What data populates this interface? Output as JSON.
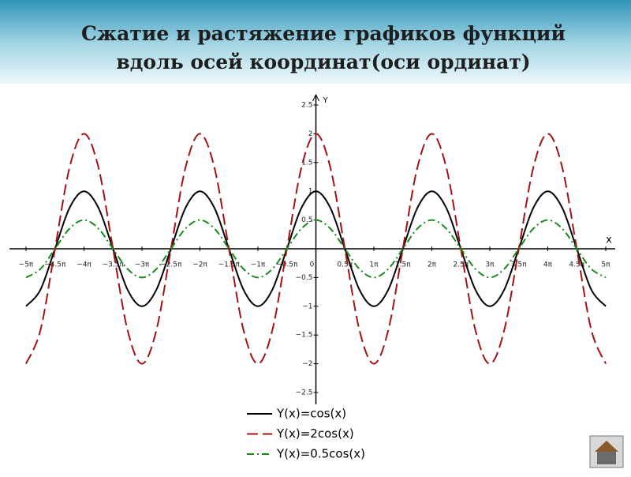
{
  "chart_data": {
    "type": "line",
    "title": "Сжатие и растяжение графиков функций вдоль осей координат(оси ординат)",
    "x_label": "x",
    "y_label": "Y",
    "x": [
      -5,
      -4.75,
      -4.5,
      -4.25,
      -4,
      -3.75,
      -3.5,
      -3.25,
      -3,
      -2.75,
      -2.5,
      -2.25,
      -2,
      -1.75,
      -1.5,
      -1.25,
      -1,
      -0.75,
      -0.5,
      -0.25,
      0,
      0.25,
      0.5,
      0.75,
      1,
      1.25,
      1.5,
      1.75,
      2,
      2.25,
      2.5,
      2.75,
      3,
      3.25,
      3.5,
      3.75,
      4,
      4.25,
      4.5,
      4.75,
      5
    ],
    "series": [
      {
        "name": "Y(x)=cos(x)",
        "color": "#000000",
        "dash": "solid",
        "values": [
          -1,
          -0.71,
          0,
          0.71,
          1,
          0.71,
          0,
          -0.71,
          -1,
          -0.71,
          0,
          0.71,
          1,
          0.71,
          0,
          -0.71,
          -1,
          -0.71,
          0,
          0.71,
          1,
          0.71,
          0,
          -0.71,
          -1,
          -0.71,
          0,
          0.71,
          1,
          0.71,
          0,
          -0.71,
          -1,
          -0.71,
          0,
          0.71,
          1,
          0.71,
          0,
          -0.71,
          -1
        ]
      },
      {
        "name": "Y(x)=2cos(x)",
        "color": "#a01414",
        "dash": "dashed",
        "values": [
          -2,
          -1.41,
          0,
          1.41,
          2,
          1.41,
          0,
          -1.41,
          -2,
          -1.41,
          0,
          1.41,
          2,
          1.41,
          0,
          -1.41,
          -2,
          -1.41,
          0,
          1.41,
          2,
          1.41,
          0,
          -1.41,
          -2,
          -1.41,
          0,
          1.41,
          2,
          1.41,
          0,
          -1.41,
          -2,
          -1.41,
          0,
          1.41,
          2,
          1.41,
          0,
          -1.41,
          -2
        ]
      },
      {
        "name": "Y(x)=0.5cos(x)",
        "color": "#1a8a1a",
        "dash": "dashdot",
        "values": [
          -0.5,
          -0.35,
          0,
          0.35,
          0.5,
          0.35,
          0,
          -0.35,
          -0.5,
          -0.35,
          0,
          0.35,
          0.5,
          0.35,
          0,
          -0.35,
          -0.5,
          -0.35,
          0,
          0.35,
          0.5,
          0.35,
          0,
          -0.35,
          -0.5,
          -0.35,
          0,
          0.35,
          0.5,
          0.35,
          0,
          -0.35,
          -0.5,
          -0.35,
          0,
          0.35,
          0.5,
          0.35,
          0,
          -0.35,
          -0.5
        ]
      }
    ],
    "xlim": [
      -5,
      5
    ],
    "ylim": [
      -2.5,
      2.5
    ],
    "xticks": [
      {
        "value": -5,
        "label": "−5π"
      },
      {
        "value": -4.5,
        "label": "−4.5π"
      },
      {
        "value": -4,
        "label": "−4π"
      },
      {
        "value": -3.5,
        "label": "−3.5π"
      },
      {
        "value": -3,
        "label": "−3π"
      },
      {
        "value": -2.5,
        "label": "−2.5π"
      },
      {
        "value": -2,
        "label": "−2π"
      },
      {
        "value": -1.5,
        "label": "−1.5π"
      },
      {
        "value": -1,
        "label": "−1π"
      },
      {
        "value": -0.5,
        "label": "−0.5π"
      },
      0,
      {
        "value": 0.5,
        "label": "0.5π"
      },
      {
        "value": 1,
        "label": "1π"
      },
      {
        "value": 1.5,
        "label": "1.5π"
      },
      {
        "value": 2,
        "label": "2π"
      },
      {
        "value": 2.5,
        "label": "2.5π"
      },
      {
        "value": 3,
        "label": "3π"
      },
      {
        "value": 3.5,
        "label": "3.5π"
      },
      {
        "value": 4,
        "label": "4π"
      },
      {
        "value": 4.5,
        "label": "4.5π"
      },
      {
        "value": 5,
        "label": "5π"
      }
    ],
    "yticks": [
      {
        "value": -2.5,
        "label": "−2.5"
      },
      {
        "value": -2,
        "label": "−2"
      },
      {
        "value": -1.5,
        "label": "−1.5"
      },
      {
        "value": -1,
        "label": "−1"
      },
      {
        "value": -0.5,
        "label": "−0.5"
      },
      0.5,
      1,
      1.5,
      2,
      2.5
    ],
    "grid": false
  }
}
